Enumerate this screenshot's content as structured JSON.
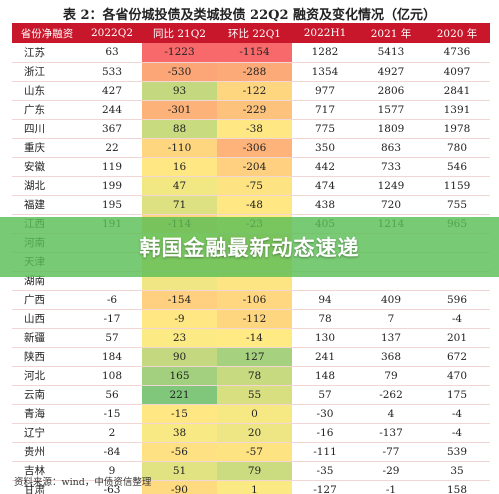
{
  "title": "表 2：各省份城投债及类城投债 22Q2 融资及变化情况（亿元）",
  "banner": "韩国金融最新动态速递",
  "source": "资料来源：wind，中债资信整理",
  "headers": [
    "省份净融资",
    "2022Q2",
    "同比 21Q2",
    "环比 22Q1",
    "2022H1",
    "2021 年",
    "2020 年"
  ],
  "rows": [
    [
      "江苏",
      "63",
      "-1223",
      "-1154",
      "1282",
      "5413",
      "4736"
    ],
    [
      "浙江",
      "533",
      "-530",
      "-288",
      "1354",
      "4927",
      "4097"
    ],
    [
      "山东",
      "427",
      "93",
      "-122",
      "977",
      "2806",
      "2841"
    ],
    [
      "广东",
      "244",
      "-301",
      "-229",
      "717",
      "1577",
      "1391"
    ],
    [
      "四川",
      "367",
      "88",
      "-38",
      "775",
      "1809",
      "1978"
    ],
    [
      "重庆",
      "22",
      "-110",
      "-306",
      "350",
      "863",
      "780"
    ],
    [
      "安徽",
      "119",
      "16",
      "-204",
      "442",
      "733",
      "546"
    ],
    [
      "湖北",
      "199",
      "47",
      "-75",
      "474",
      "1249",
      "1159"
    ],
    [
      "福建",
      "195",
      "71",
      "-48",
      "438",
      "720",
      "755"
    ],
    [
      "江西",
      "191",
      "-114",
      "-23",
      "405",
      "1214",
      "965"
    ],
    [
      "河南",
      "",
      "",
      "",
      "",
      "",
      ""
    ],
    [
      "天津",
      "",
      "",
      "",
      "",
      "",
      ""
    ],
    [
      "湖南",
      "",
      "",
      "",
      "",
      "",
      ""
    ],
    [
      "广西",
      "-6",
      "-154",
      "-106",
      "94",
      "409",
      "596"
    ],
    [
      "山西",
      "-17",
      "-9",
      "-112",
      "78",
      "7",
      "-4"
    ],
    [
      "新疆",
      "57",
      "23",
      "-14",
      "130",
      "137",
      "201"
    ],
    [
      "陕西",
      "184",
      "90",
      "127",
      "241",
      "368",
      "672"
    ],
    [
      "河北",
      "108",
      "165",
      "78",
      "148",
      "79",
      "470"
    ],
    [
      "云南",
      "56",
      "221",
      "55",
      "57",
      "-262",
      "175"
    ],
    [
      "青海",
      "-15",
      "-15",
      "0",
      "-30",
      "4",
      "-4"
    ],
    [
      "辽宁",
      "2",
      "38",
      "20",
      "-16",
      "-137",
      "-4"
    ],
    [
      "贵州",
      "-84",
      "-56",
      "-57",
      "-111",
      "-77",
      "539"
    ],
    [
      "吉林",
      "9",
      "51",
      "79",
      "-35",
      "-29",
      "35"
    ],
    [
      "甘肃",
      "-63",
      "-90",
      "1",
      "-127",
      "-1",
      "158"
    ]
  ],
  "heat_colors": {
    "yoy": [
      "#f8696b",
      "#fca576",
      "#c4d97f",
      "#fdb279",
      "#c8db7f",
      "#fed680",
      "#ffe884",
      "#f2e883",
      "#dde182",
      "#fed680",
      "#f5e884",
      "#fee583",
      "#f0e784",
      "#fed07f",
      "#ffe784",
      "#fceb84",
      "#c4d97f",
      "#a3d07f",
      "#80c67b",
      "#ffe784",
      "#f8e984",
      "#fee183",
      "#e1e282",
      "#fedb81"
    ],
    "qoq": [
      "#f8696b",
      "#fcaa77",
      "#fed680",
      "#fdc27c",
      "#ffe884",
      "#fdb379",
      "#fed07f",
      "#fee383",
      "#ffe784",
      "#ffea84",
      "#fdd680",
      "#ffe283",
      "#fee583",
      "#fed780",
      "#fed680",
      "#ffea84",
      "#a6d27f",
      "#c7da7f",
      "#d7df81",
      "#f6e984",
      "#eee684",
      "#fee383",
      "#cadb80",
      "#fbe983"
    ]
  }
}
